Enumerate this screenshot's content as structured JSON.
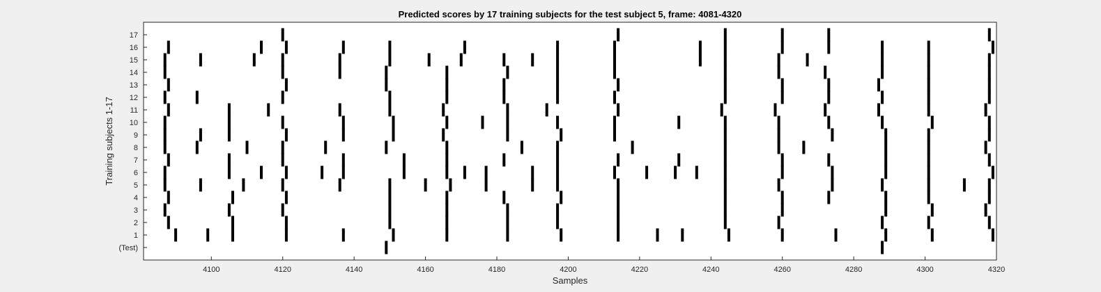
{
  "chart_data": {
    "type": "raster",
    "title": "Predicted scores by 17 training subjects for the test subject 5, frame: 4081-4320",
    "xlabel": "Samples",
    "ylabel": "Training subjects 1-17",
    "xlim": [
      4081,
      4320
    ],
    "x_ticks": [
      4100,
      4120,
      4140,
      4160,
      4180,
      4200,
      4220,
      4240,
      4260,
      4280,
      4300,
      4320
    ],
    "y_tick_labels": [
      "(Test)",
      "1",
      "2",
      "3",
      "4",
      "5",
      "6",
      "7",
      "8",
      "9",
      "10",
      "11",
      "12",
      "13",
      "14",
      "15",
      "16",
      "17"
    ],
    "grid": false,
    "legend": "none",
    "mark_color": "#000000",
    "rows": [
      {
        "label": "(Test)",
        "x": [
          4149,
          4288
        ]
      },
      {
        "label": "1",
        "x": [
          4090,
          4099,
          4106,
          4121,
          4137,
          4151,
          4166,
          4183,
          4198,
          4214,
          4225,
          4232,
          4245,
          4260,
          4275,
          4289,
          4302,
          4319
        ]
      },
      {
        "label": "2",
        "x": [
          4088,
          4106,
          4121,
          4150,
          4166,
          4183,
          4197,
          4214,
          4244,
          4259,
          4288,
          4301,
          4318
        ]
      },
      {
        "label": "3",
        "x": [
          4087,
          4105,
          4120,
          4150,
          4166,
          4183,
          4197,
          4214,
          4244,
          4260,
          4289,
          4302,
          4317
        ]
      },
      {
        "label": "4",
        "x": [
          4088,
          4106,
          4121,
          4150,
          4166,
          4182,
          4198,
          4214,
          4244,
          4260,
          4273,
          4289,
          4301,
          4318
        ]
      },
      {
        "label": "5",
        "x": [
          4087,
          4097,
          4109,
          4120,
          4136,
          4150,
          4160,
          4167,
          4177,
          4190,
          4197,
          4214,
          4244,
          4259,
          4274,
          4288,
          4301,
          4311,
          4318
        ]
      },
      {
        "label": "6",
        "x": [
          4087,
          4105,
          4114,
          4121,
          4131,
          4137,
          4154,
          4166,
          4171,
          4177,
          4190,
          4197,
          4213,
          4222,
          4230,
          4236,
          4244,
          4260,
          4274,
          4289,
          4301,
          4319
        ]
      },
      {
        "label": "7",
        "x": [
          4088,
          4105,
          4120,
          4137,
          4154,
          4166,
          4182,
          4197,
          4214,
          4231,
          4244,
          4260,
          4273,
          4289,
          4301,
          4318
        ]
      },
      {
        "label": "8",
        "x": [
          4087,
          4096,
          4110,
          4120,
          4132,
          4149,
          4166,
          4187,
          4197,
          4218,
          4244,
          4259,
          4266,
          4289,
          4301,
          4317
        ]
      },
      {
        "label": "9",
        "x": [
          4087,
          4097,
          4105,
          4121,
          4137,
          4151,
          4165,
          4183,
          4198,
          4213,
          4244,
          4259,
          4274,
          4289,
          4301,
          4318
        ]
      },
      {
        "label": "10",
        "x": [
          4087,
          4105,
          4120,
          4137,
          4151,
          4166,
          4176,
          4183,
          4197,
          4213,
          4231,
          4244,
          4259,
          4273,
          4288,
          4302,
          4318
        ]
      },
      {
        "label": "11",
        "x": [
          4088,
          4105,
          4116,
          4136,
          4150,
          4165,
          4183,
          4194,
          4214,
          4243,
          4258,
          4272,
          4287,
          4301,
          4317
        ]
      },
      {
        "label": "12",
        "x": [
          4087,
          4096,
          4120,
          4150,
          4166,
          4182,
          4197,
          4213,
          4244,
          4260,
          4273,
          4288,
          4301,
          4318
        ]
      },
      {
        "label": "13",
        "x": [
          4088,
          4121,
          4149,
          4166,
          4182,
          4197,
          4214,
          4244,
          4260,
          4273,
          4287,
          4301,
          4318
        ]
      },
      {
        "label": "14",
        "x": [
          4087,
          4120,
          4136,
          4149,
          4166,
          4183,
          4197,
          4213,
          4244,
          4259,
          4272,
          4288,
          4301,
          4318
        ]
      },
      {
        "label": "15",
        "x": [
          4087,
          4097,
          4112,
          4120,
          4136,
          4150,
          4161,
          4170,
          4182,
          4190,
          4197,
          4213,
          4237,
          4244,
          4259,
          4267,
          4288,
          4301,
          4318
        ]
      },
      {
        "label": "16",
        "x": [
          4088,
          4114,
          4121,
          4137,
          4150,
          4171,
          4197,
          4213,
          4237,
          4244,
          4260,
          4273,
          4288,
          4301,
          4319
        ]
      },
      {
        "label": "17",
        "x": [
          4120,
          4214,
          4244,
          4260,
          4273,
          4318
        ]
      }
    ]
  }
}
